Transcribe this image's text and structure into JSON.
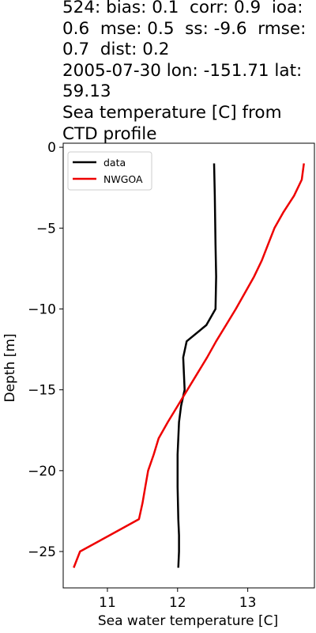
{
  "chart_data": {
    "type": "line",
    "title": "524: bias: 0.1  corr: 0.9  ioa:\n0.6  mse: 0.5  ss: -9.6  rmse:\n0.7  dist: 0.2\n2005-07-30 lon: -151.71 lat:\n59.13\nSea temperature [C] from\nCTD profile",
    "xlabel": "Sea water temperature [C]",
    "ylabel": "Depth [m]",
    "xlim": [
      10.37,
      13.95
    ],
    "ylim": [
      -27.25,
      0.25
    ],
    "xticks": [
      11,
      12,
      13
    ],
    "xtick_labels": [
      "11",
      "12",
      "13"
    ],
    "yticks": [
      0,
      -5,
      -10,
      -15,
      -20,
      -25
    ],
    "ytick_labels": [
      "0",
      "−5",
      "−10",
      "−15",
      "−20",
      "−25"
    ],
    "grid": false,
    "legend_position": "upper left",
    "series": [
      {
        "name": "data",
        "color": "#000000",
        "x": [
          12.52,
          12.53,
          12.54,
          12.55,
          12.54,
          12.41,
          12.13,
          12.08,
          12.09,
          12.1,
          12.05,
          12.02,
          12.0,
          12.0,
          12.01,
          12.02,
          12.02,
          12.01
        ],
        "y": [
          -1,
          -3,
          -6,
          -8,
          -10,
          -11,
          -12,
          -13,
          -14,
          -15,
          -16,
          -17,
          -19,
          -21,
          -23,
          -24,
          -25,
          -26
        ]
      },
      {
        "name": "NWGOA",
        "color": "#ee0000",
        "x": [
          13.8,
          13.77,
          13.66,
          13.51,
          13.38,
          13.29,
          13.2,
          13.09,
          12.96,
          12.83,
          12.69,
          12.55,
          12.42,
          12.28,
          12.14,
          12.0,
          11.86,
          11.73,
          11.66,
          11.58,
          11.54,
          11.5,
          11.45,
          11.03,
          10.61,
          10.52
        ],
        "y": [
          -1,
          -2,
          -3,
          -4,
          -5,
          -6,
          -7,
          -8,
          -9,
          -10,
          -11,
          -12,
          -13,
          -14,
          -15,
          -16,
          -17,
          -18,
          -19,
          -20,
          -21,
          -22,
          -23,
          -24,
          -25,
          -26
        ]
      }
    ]
  }
}
